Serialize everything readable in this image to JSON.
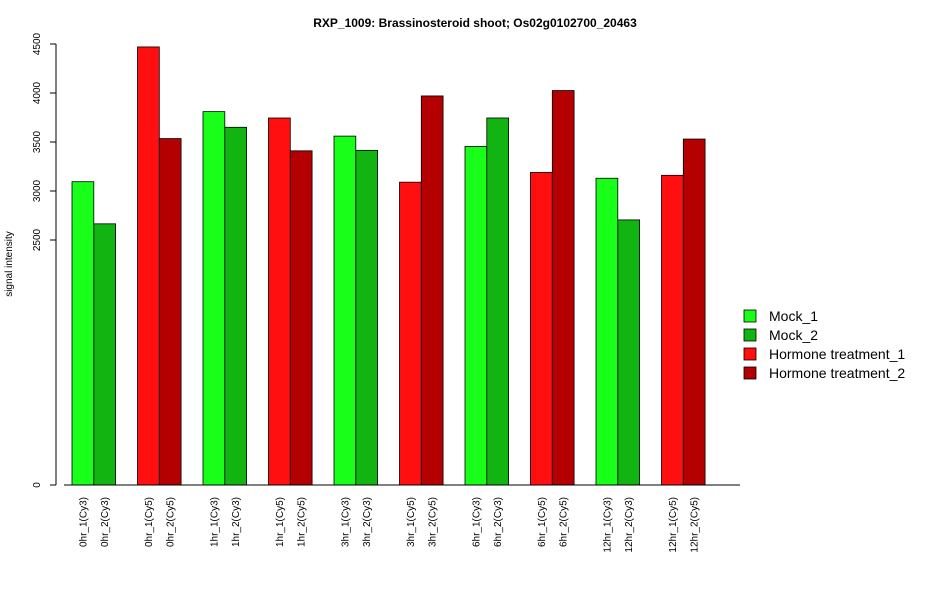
{
  "chart_data": {
    "type": "bar",
    "title": "RXP_1009: Brassinosteroid shoot; Os02g0102700_20463",
    "ylabel": "signal intensity",
    "xlabel": "",
    "ylim": [
      0,
      4500
    ],
    "yticks": [
      0,
      2500,
      3000,
      3500,
      4000,
      4500
    ],
    "legend_placement": "right",
    "grid": false,
    "series": [
      {
        "name": "Mock_1",
        "color": "#19FF19"
      },
      {
        "name": "Mock_2",
        "color": "#12B412"
      },
      {
        "name": "Hormone treatment_1",
        "color": "#FF0F0F"
      },
      {
        "name": "Hormone treatment_2",
        "color": "#B40000"
      }
    ],
    "bars": [
      {
        "label": "0hr_1(Cy3)",
        "value": 3095,
        "series": 0
      },
      {
        "label": "0hr_2(Cy3)",
        "value": 2665,
        "series": 1
      },
      {
        "label": "0hr_1(Cy5)",
        "value": 4470,
        "series": 2
      },
      {
        "label": "0hr_2(Cy5)",
        "value": 3535,
        "series": 3
      },
      {
        "label": "1hr_1(Cy3)",
        "value": 3810,
        "series": 0
      },
      {
        "label": "1hr_2(Cy3)",
        "value": 3650,
        "series": 1
      },
      {
        "label": "1hr_1(Cy5)",
        "value": 3745,
        "series": 2
      },
      {
        "label": "1hr_2(Cy5)",
        "value": 3410,
        "series": 3
      },
      {
        "label": "3hr_1(Cy3)",
        "value": 3560,
        "series": 0
      },
      {
        "label": "3hr_2(Cy3)",
        "value": 3415,
        "series": 1
      },
      {
        "label": "3hr_1(Cy5)",
        "value": 3090,
        "series": 2
      },
      {
        "label": "3hr_2(Cy5)",
        "value": 3970,
        "series": 3
      },
      {
        "label": "6hr_1(Cy3)",
        "value": 3455,
        "series": 0
      },
      {
        "label": "6hr_2(Cy3)",
        "value": 3745,
        "series": 1
      },
      {
        "label": "6hr_1(Cy5)",
        "value": 3190,
        "series": 2
      },
      {
        "label": "6hr_2(Cy5)",
        "value": 4025,
        "series": 3
      },
      {
        "label": "12hr_1(Cy3)",
        "value": 3130,
        "series": 0
      },
      {
        "label": "12hr_2(Cy3)",
        "value": 2705,
        "series": 1
      },
      {
        "label": "12hr_1(Cy5)",
        "value": 3160,
        "series": 2
      },
      {
        "label": "12hr_2(Cy5)",
        "value": 3530,
        "series": 3
      }
    ]
  }
}
